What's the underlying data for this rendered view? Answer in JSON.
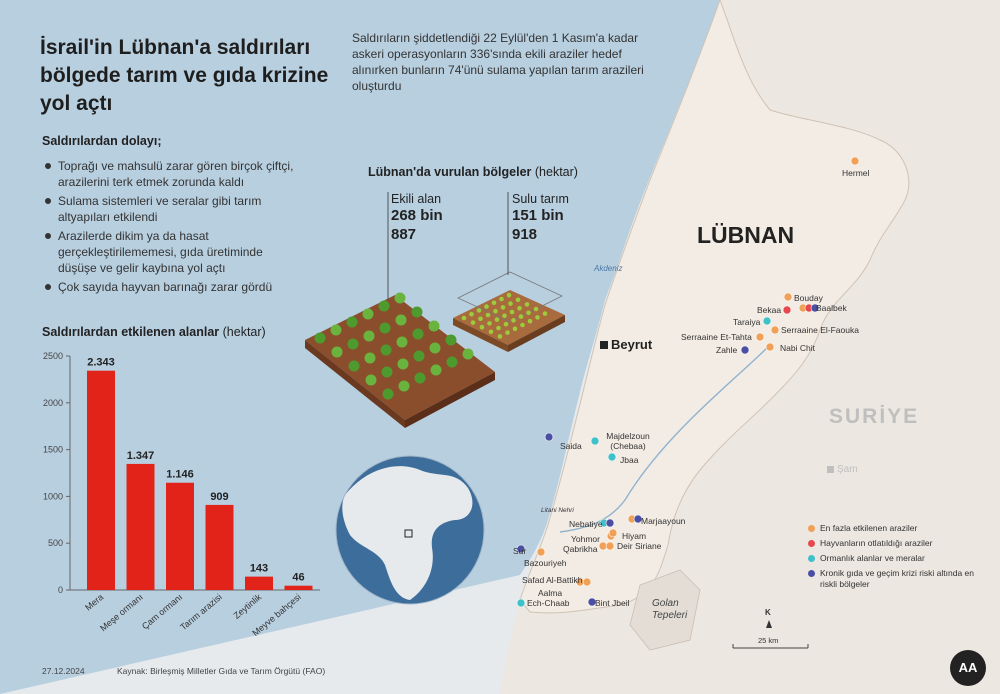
{
  "header": {
    "title": "İsrail'in Lübnan'a saldırıları bölgede tarım ve gıda krizine yol açtı",
    "intro": "Saldırıların şiddetlendiği 22 Eylül'den 1 Kasım'a kadar askeri operasyonların 336'sında ekili araziler hedef alınırken bunların 74'ünü sulama yapılan tarım arazileri oluşturdu"
  },
  "causes": {
    "heading": "Saldırılardan dolayı;",
    "items": [
      "Toprağı ve mahsulü zarar gören birçok çiftçi, arazilerini terk etmek zorunda kaldı",
      "Sulama sistemleri ve seralar gibi tarım altyapıları etkilendi",
      "Arazilerde dikim ya da hasat gerçekleştirilememesi, gıda üretiminde düşüşe ve gelir kaybına yol açtı",
      "Çok sayıda hayvan barınağı zarar gördü"
    ]
  },
  "regions": {
    "heading": "Lübnan'da vurulan bölgeler",
    "unit": "(hektar)",
    "cultivated": {
      "label": "Ekili alan",
      "value_line1": "268 bin",
      "value_line2": "887"
    },
    "irrigated": {
      "label": "Sulu tarım",
      "value_line1": "151 bin",
      "value_line2": "918"
    }
  },
  "chart_data": {
    "type": "bar",
    "title": "Saldırılardan etkilenen alanlar",
    "unit": "(hektar)",
    "categories": [
      "Mera",
      "Meşe ormanı",
      "Çam ormanı",
      "Tarım arazisi",
      "Zeytinlik",
      "Meyve bahçesi"
    ],
    "values": [
      2343,
      1347,
      1146,
      909,
      143,
      46
    ],
    "value_labels": [
      "2.343",
      "1.347",
      "1.146",
      "909",
      "143",
      "46"
    ],
    "ylim": [
      0,
      2500
    ],
    "yticks": [
      0,
      500,
      1000,
      1500,
      2000,
      2500
    ],
    "bar_color": "#e2231a"
  },
  "map": {
    "country": "LÜBNAN",
    "neighbor": "SURİYE",
    "sea": "Akdeniz",
    "capital": "Beyrut",
    "syria_city": "Şam",
    "river": "Litani Nehri",
    "golan": [
      "Golan",
      "Tepeleri"
    ],
    "north_arrow": "K",
    "scale_label": "25 km",
    "colors": {
      "orange": "#f0a057",
      "red": "#e5484d",
      "teal": "#3fc1c9",
      "purple": "#4a4fa3"
    },
    "places": [
      {
        "name": "Hermel",
        "color": "orange"
      },
      {
        "name": "Bouday",
        "color": "orange"
      },
      {
        "name": "Baalbek",
        "color": "multi"
      },
      {
        "name": "Bekaa",
        "color": "red"
      },
      {
        "name": "Taraiya",
        "color": "teal"
      },
      {
        "name": "Serraaine El-Faouka",
        "color": "orange"
      },
      {
        "name": "Serraaine Et-Tahta",
        "color": "orange"
      },
      {
        "name": "Zahle",
        "color": "purple"
      },
      {
        "name": "Nabi Chit",
        "color": "orange"
      },
      {
        "name": "Saida",
        "color": "purple"
      },
      {
        "name": "Majdelzoun (Chebaa)",
        "color": "teal"
      },
      {
        "name": "Jbaa",
        "color": "teal"
      },
      {
        "name": "Nebatiye",
        "color": "multi"
      },
      {
        "name": "Marjaayoun",
        "color": "multi"
      },
      {
        "name": "Yohmor",
        "color": "orange"
      },
      {
        "name": "Hiyam",
        "color": "orange"
      },
      {
        "name": "Qabrikha",
        "color": "orange"
      },
      {
        "name": "Deir Siriane",
        "color": "orange"
      },
      {
        "name": "Sur",
        "color": "purple"
      },
      {
        "name": "Bazouriyeh",
        "color": "orange"
      },
      {
        "name": "Safad Al-Battikh",
        "color": "orange"
      },
      {
        "name": "Aalma",
        "color": "orange"
      },
      {
        "name": "Ech-Chaab",
        "color": "teal"
      },
      {
        "name": "Bint Jbeil",
        "color": "purple"
      }
    ],
    "legend": [
      {
        "color": "orange",
        "text": "En fazla etkilenen araziler"
      },
      {
        "color": "red",
        "text": "Hayvanların otlatıldığı araziler"
      },
      {
        "color": "teal",
        "text": "Ormanlık alanlar ve meralar"
      },
      {
        "color": "purple",
        "text": "Kronik gıda ve geçim krizi riski altında en riskli bölgeler"
      }
    ]
  },
  "footer": {
    "date": "27.12.2024",
    "source": "Kaynak: Birleşmiş Milletler Gıda ve Tarım Örgütü (FAO)",
    "logo": "AA"
  }
}
